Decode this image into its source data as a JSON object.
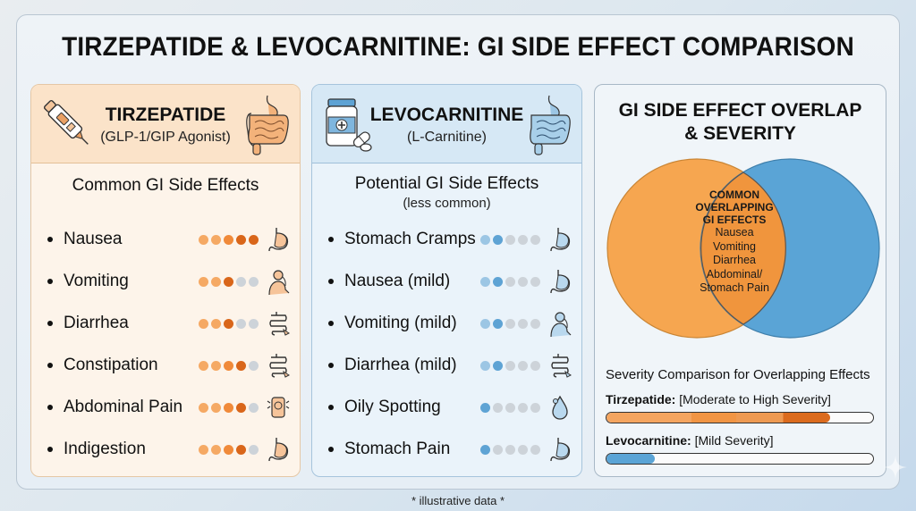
{
  "title": "TIRZEPATIDE & LEVOCARNITINE: GI SIDE EFFECT COMPARISON",
  "colors": {
    "tirz_light": "#f5a964",
    "tirz_mid": "#f08a3a",
    "tirz_dark": "#d9661a",
    "levo_light": "#9cc6e4",
    "levo_dark": "#5ea3d4",
    "dot_empty": "#cdd3d9",
    "venn_orange": "#f5a14d",
    "venn_blue": "#5aa4d6",
    "venn_overlap": "#f0973f"
  },
  "tirzepatide": {
    "name": "TIRZEPATIDE",
    "class": "(GLP-1/GIP Agonist)",
    "icon_left": "injection-pen-icon",
    "icon_right": "digestive-system-icon",
    "section_title": "Common GI Side Effects",
    "effects": [
      {
        "label": "Nausea",
        "severity": 5,
        "icon": "stomach-icon"
      },
      {
        "label": "Vomiting",
        "severity": 3,
        "icon": "vomiting-person-icon"
      },
      {
        "label": "Diarrhea",
        "severity": 3,
        "icon": "intestine-icon"
      },
      {
        "label": "Constipation",
        "severity": 4,
        "icon": "intestine-icon"
      },
      {
        "label": "Abdominal Pain",
        "severity": 4,
        "icon": "abdomen-pain-icon"
      },
      {
        "label": "Indigestion",
        "severity": 4,
        "icon": "stomach-icon"
      }
    ]
  },
  "levocarnitine": {
    "name": "LEVOCARNITINE",
    "class": "(L-Carnitine)",
    "icon_left": "pill-bottle-icon",
    "icon_right": "digestive-system-icon",
    "section_title": "Potential GI Side Effects",
    "section_subtitle": "(less common)",
    "effects": [
      {
        "label": "Stomach Cramps",
        "severity": 2,
        "icon": "stomach-icon"
      },
      {
        "label": "Nausea (mild)",
        "severity": 2,
        "icon": "stomach-icon"
      },
      {
        "label": "Vomiting (mild)",
        "severity": 2,
        "icon": "vomiting-person-icon"
      },
      {
        "label": "Diarrhea (mild)",
        "severity": 2,
        "icon": "intestine-icon"
      },
      {
        "label": "Oily Spotting",
        "severity": 1,
        "icon": "droplet-icon"
      },
      {
        "label": "Stomach Pain",
        "severity": 1,
        "icon": "stomach-icon"
      }
    ]
  },
  "overlap": {
    "title_line1": "GI SIDE EFFECT OVERLAP",
    "title_line2": "& SEVERITY",
    "venn_heading": [
      "COMMON",
      "OVERLAPPING",
      "GI EFFECTS"
    ],
    "venn_items": [
      "Nausea",
      "Vomiting",
      "Diarrhea",
      "Abdominal/",
      "Stomach Pain"
    ],
    "severity_title": "Severity Comparison for Overlapping Effects",
    "bars": [
      {
        "drug": "Tirzepatide:",
        "desc": "[Moderate to High Severity]",
        "percent": 84
      },
      {
        "drug": "Levocarnitine:",
        "desc": "[Mild Severity]",
        "percent": 18
      }
    ]
  },
  "footnote": "* illustrative data *"
}
